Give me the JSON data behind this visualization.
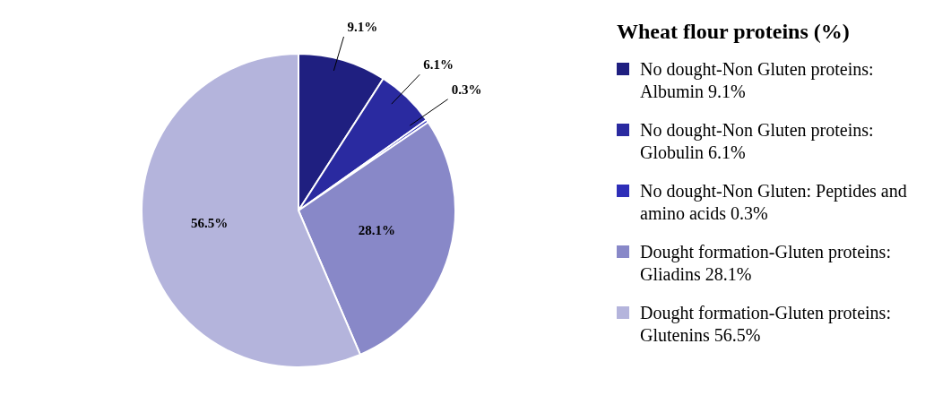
{
  "chart_data": {
    "type": "pie",
    "legend_title": "Wheat flour proteins (%)",
    "categories": [
      "No dought-Non Gluten proteins: Albumin 9.1%",
      "No dought-Non Gluten proteins: Globulin 6.1%",
      "No dought-Non Gluten: Peptides and amino acids 0.3%",
      "Dought formation-Gluten proteins: Gliadins 28.1%",
      "Dought formation-Gluten proteins: Glutenins 56.5%"
    ],
    "values": [
      9.1,
      6.1,
      0.3,
      28.1,
      56.5
    ],
    "value_labels": [
      "9.1%",
      "6.1%",
      "0.3%",
      "28.1%",
      "56.5%"
    ],
    "colors": [
      "#1f1f80",
      "#2a2aa0",
      "#2e2eb8",
      "#8888c8",
      "#b4b4dc"
    ],
    "legend": "right"
  }
}
